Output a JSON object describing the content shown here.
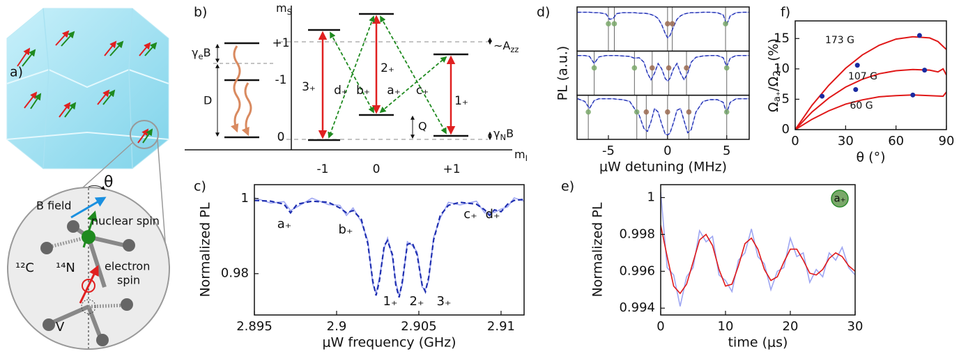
{
  "panel_labels": [
    "a)",
    "b)",
    "c)",
    "d)",
    "e)",
    "f)"
  ],
  "panel_a": {
    "angle": "θ",
    "b_field": "B field",
    "nuclear_spin": "nuclear spin",
    "carbon": "¹²C",
    "nitrogen": "¹⁴N",
    "electron_spin": [
      "electron",
      "spin"
    ],
    "vacancy": "V"
  },
  "panel_b": {
    "ms_label": [
      {
        "text": "m"
      },
      {
        "text": "S",
        "sub": true
      }
    ],
    "mi_label": [
      {
        "text": "m"
      },
      {
        "text": "I",
        "sub": true
      }
    ],
    "ms_levels": [
      "+1",
      "-1",
      "0"
    ],
    "mi_values": [
      "-1",
      "0",
      "+1"
    ],
    "gamma_e_b": [
      {
        "text": "γ"
      },
      {
        "text": "e",
        "sub": true
      },
      {
        "text": "B"
      }
    ],
    "zero_field": "D",
    "hyperfine": [
      {
        "text": "~A"
      },
      {
        "text": "zz",
        "sub": true
      }
    ],
    "quadrupole": "Q",
    "gamma_n_b": [
      {
        "text": "γ"
      },
      {
        "text": "N",
        "sub": true
      },
      {
        "text": "B"
      }
    ],
    "electron_transitions": [
      "3₊",
      "2₊",
      "1₊"
    ],
    "nuclear_transitions": [
      "d₊",
      "b₊",
      "a₊",
      "c₊"
    ]
  },
  "chart_data": [
    {
      "type": "line",
      "xlabel": "μW frequency (GHz)",
      "ylabel": "Normalized PL",
      "xlim": [
        2.895,
        2.9114
      ],
      "ylim": [
        0.969,
        1.0037
      ],
      "xticks": [
        2.895,
        2.9,
        2.905,
        2.91
      ],
      "yticks": [
        0.98,
        1
      ],
      "x": [
        2.895,
        2.896,
        2.8968,
        2.8972,
        2.8976,
        2.8985,
        2.8995,
        2.9002,
        2.9006,
        2.901,
        2.9015,
        2.9019,
        2.9022,
        2.9024,
        2.9026,
        2.9029,
        2.9031,
        2.9034,
        2.9036,
        2.9038,
        2.904,
        2.9043,
        2.9046,
        2.9049,
        2.9052,
        2.9054,
        2.9056,
        2.9059,
        2.9063,
        2.9068,
        2.9075,
        2.9085,
        2.909,
        2.9093,
        2.9096,
        2.91,
        2.9104,
        2.9108,
        2.9114
      ],
      "series": [
        {
          "color": "#9ea6f2",
          "values": [
            1.0002,
            0.9988,
            0.9992,
            0.9968,
            0.9978,
            1.0001,
            0.9984,
            0.9982,
            0.9955,
            0.9975,
            0.9938,
            0.9888,
            0.9772,
            0.9748,
            0.9788,
            0.9868,
            0.9895,
            0.9842,
            0.9778,
            0.9742,
            0.9772,
            0.9885,
            0.9875,
            0.9858,
            0.9764,
            0.9758,
            0.9782,
            0.9897,
            0.9948,
            0.999,
            0.9983,
            0.9993,
            0.9962,
            0.9962,
            0.9963,
            0.9972,
            0.9978,
            1.0002,
            0.9993
          ]
        },
        {
          "color": "#1f2fb0",
          "dashed": true,
          "values": [
            0.9995,
            0.9993,
            0.9985,
            0.9962,
            0.9985,
            0.9993,
            0.999,
            0.9975,
            0.9962,
            0.9968,
            0.9945,
            0.988,
            0.978,
            0.9742,
            0.978,
            0.9875,
            0.9888,
            0.985,
            0.977,
            0.9737,
            0.978,
            0.9878,
            0.9882,
            0.985,
            0.977,
            0.9752,
            0.979,
            0.989,
            0.9955,
            0.9982,
            0.999,
            0.9985,
            0.997,
            0.9955,
            0.997,
            0.9965,
            0.9985,
            0.9995,
            0.9998
          ]
        }
      ],
      "annotations": [
        {
          "text": "a₊",
          "color": "#2a8a2a"
        },
        {
          "text": "b₊",
          "color": "#2a8a2a"
        },
        {
          "text": "1₊",
          "color": "#e02020"
        },
        {
          "text": "2₊",
          "color": "#e02020"
        },
        {
          "text": "3₊",
          "color": "#e02020"
        },
        {
          "text": "c₊",
          "color": "#2a8a2a"
        },
        {
          "text": "d₊",
          "color": "#2a8a2a"
        }
      ]
    },
    {
      "type": "spectra",
      "xlabel": "μW detuning (MHz)",
      "ylabel": "PL (a.u.)",
      "xlim": [
        -7.65,
        6.9
      ],
      "ylim": [
        0,
        1
      ],
      "xticks": [
        -5,
        0,
        5
      ],
      "line_color": "#9ea6f2",
      "fit_color": "#1f2fb0",
      "x": [
        -7.6,
        -7,
        -6.6,
        -6.2,
        -5.8,
        -5.2,
        -4.9,
        -4.6,
        -4.3,
        -3.8,
        -3.2,
        -2.8,
        -2.4,
        -2.0,
        -1.7,
        -1.4,
        -1.1,
        -0.8,
        -0.5,
        -0.2,
        0,
        0.2,
        0.5,
        0.8,
        1.1,
        1.4,
        1.7,
        2.0,
        2.4,
        3,
        3.6,
        4.2,
        4.7,
        5.0,
        5.3,
        5.8,
        6.4,
        6.9
      ],
      "subplots": [
        {
          "values": [
            0.88,
            0.88,
            0.88,
            0.87,
            0.87,
            0.84,
            0.72,
            0.74,
            0.85,
            0.87,
            0.87,
            0.87,
            0.86,
            0.86,
            0.85,
            0.83,
            0.8,
            0.74,
            0.6,
            0.4,
            0.3,
            0.35,
            0.55,
            0.72,
            0.8,
            0.84,
            0.86,
            0.87,
            0.87,
            0.88,
            0.88,
            0.87,
            0.82,
            0.6,
            0.8,
            0.87,
            0.88,
            0.88
          ],
          "markers": [
            {
              "x": -5.0,
              "color": "#7aa86a"
            },
            {
              "x": -4.5,
              "color": "#7aa86a"
            },
            {
              "x": 0.0,
              "color": "#9a6a50"
            },
            {
              "x": 0.4,
              "color": "#9a6a50"
            },
            {
              "x": 4.9,
              "color": "#7aa86a"
            }
          ]
        },
        {
          "values": [
            0.9,
            0.9,
            0.88,
            0.72,
            0.87,
            0.9,
            0.9,
            0.9,
            0.9,
            0.89,
            0.88,
            0.84,
            0.85,
            0.75,
            0.5,
            0.35,
            0.5,
            0.72,
            0.6,
            0.38,
            0.32,
            0.38,
            0.6,
            0.72,
            0.5,
            0.35,
            0.5,
            0.75,
            0.86,
            0.89,
            0.9,
            0.9,
            0.85,
            0.65,
            0.84,
            0.9,
            0.9,
            0.9
          ],
          "markers": [
            {
              "x": -6.2,
              "color": "#7aa86a"
            },
            {
              "x": -2.8,
              "color": "#7aa86a"
            },
            {
              "x": -1.3,
              "color": "#9a6a50"
            },
            {
              "x": 0.1,
              "color": "#9a6a50"
            },
            {
              "x": 1.6,
              "color": "#9a6a50"
            },
            {
              "x": 5.0,
              "color": "#7aa86a"
            }
          ]
        },
        {
          "values": [
            0.92,
            0.86,
            0.7,
            0.88,
            0.92,
            0.92,
            0.92,
            0.92,
            0.91,
            0.9,
            0.86,
            0.7,
            0.55,
            0.25,
            0.18,
            0.4,
            0.7,
            0.62,
            0.35,
            0.12,
            0.1,
            0.14,
            0.38,
            0.66,
            0.7,
            0.42,
            0.15,
            0.22,
            0.62,
            0.86,
            0.9,
            0.9,
            0.84,
            0.6,
            0.84,
            0.92,
            0.92,
            0.92
          ],
          "markers": [
            {
              "x": -6.7,
              "color": "#7aa86a"
            },
            {
              "x": -2.6,
              "color": "#7aa86a"
            },
            {
              "x": -1.8,
              "color": "#9a6a50"
            },
            {
              "x": 0.0,
              "color": "#9a6a50"
            },
            {
              "x": 1.8,
              "color": "#9a6a50"
            },
            {
              "x": 5.0,
              "color": "#7aa86a"
            }
          ]
        }
      ]
    },
    {
      "type": "line",
      "xlabel": "time (μs)",
      "ylabel": "Normalized PL",
      "xlim": [
        0,
        30
      ],
      "ylim": [
        0.99363,
        1.0007
      ],
      "xticks": [
        0,
        10,
        20,
        30
      ],
      "yticks": [
        0.994,
        0.996,
        0.998,
        1
      ],
      "x": [
        0,
        1,
        2,
        3,
        4,
        5,
        6,
        7,
        8,
        9,
        10,
        11,
        12,
        13,
        14,
        15,
        16,
        17,
        18,
        19,
        20,
        21,
        22,
        23,
        24,
        25,
        26,
        27,
        28,
        29,
        30
      ],
      "series": [
        {
          "color": "#9ea6f2",
          "values": [
            1.0003,
            0.9962,
            0.9958,
            0.9941,
            0.9957,
            0.9962,
            0.9982,
            0.9976,
            0.9979,
            0.9958,
            0.9955,
            0.9949,
            0.9966,
            0.997,
            0.9983,
            0.9968,
            0.9964,
            0.995,
            0.996,
            0.9962,
            0.9978,
            0.9968,
            0.997,
            0.9954,
            0.9961,
            0.9957,
            0.997,
            0.9966,
            0.9973,
            0.9962,
            0.9958
          ]
        },
        {
          "color": "#e01818",
          "values": [
            0.9985,
            0.9968,
            0.9952,
            0.9948,
            0.9953,
            0.9965,
            0.9977,
            0.998,
            0.9974,
            0.9961,
            0.9952,
            0.9953,
            0.9963,
            0.9975,
            0.9978,
            0.9972,
            0.9961,
            0.9955,
            0.9957,
            0.9965,
            0.9972,
            0.9972,
            0.9966,
            0.9959,
            0.9958,
            0.9961,
            0.9967,
            0.997,
            0.9968,
            0.9963,
            0.996
          ]
        }
      ],
      "badge": {
        "text": "a₊",
        "color": "#2a8a2a"
      }
    },
    {
      "type": "scatter",
      "xlabel": "θ (°)",
      "ylabel": [
        {
          "text": "Ω"
        },
        {
          "text": "a₊",
          "sub": true
        },
        {
          "text": "/Ω"
        },
        {
          "text": "2₊",
          "sub": true
        },
        {
          "text": " (%)"
        }
      ],
      "xlim": [
        0,
        90
      ],
      "ylim": [
        0,
        17.9
      ],
      "xticks": [
        0,
        30,
        60,
        90
      ],
      "yticks": [
        0,
        5,
        10,
        15
      ],
      "point_color": "#1a2aa0",
      "series": [
        {
          "name": "173 G",
          "color": "#e01818",
          "x": [
            0,
            10,
            20,
            30,
            40,
            50,
            60,
            70,
            80,
            85,
            88,
            90
          ],
          "values": [
            0,
            4,
            7.3,
            10.1,
            12.3,
            13.9,
            14.9,
            15.3,
            15.1,
            14.5,
            13.7,
            13.2
          ],
          "points_x": [
            16,
            37,
            74
          ],
          "points": [
            5.5,
            10.6,
            15.5
          ]
        },
        {
          "name": "107 G",
          "color": "#e01818",
          "x": [
            0,
            10,
            20,
            30,
            40,
            50,
            60,
            70,
            80,
            85,
            88,
            90
          ],
          "values": [
            0,
            2.9,
            5.2,
            7,
            8.3,
            9.2,
            9.7,
            9.9,
            9.8,
            9.5,
            10,
            9
          ],
          "points_x": [
            36,
            77
          ],
          "points": [
            6.6,
            9.8
          ]
        },
        {
          "name": "60 G",
          "color": "#e01818",
          "x": [
            0,
            10,
            20,
            30,
            40,
            50,
            60,
            70,
            80,
            88,
            90
          ],
          "values": [
            0,
            1.7,
            3.1,
            4.2,
            4.9,
            5.4,
            5.6,
            5.7,
            5.6,
            5.5,
            6.2
          ],
          "points_x": [
            70
          ],
          "points": [
            5.7
          ]
        }
      ]
    }
  ]
}
